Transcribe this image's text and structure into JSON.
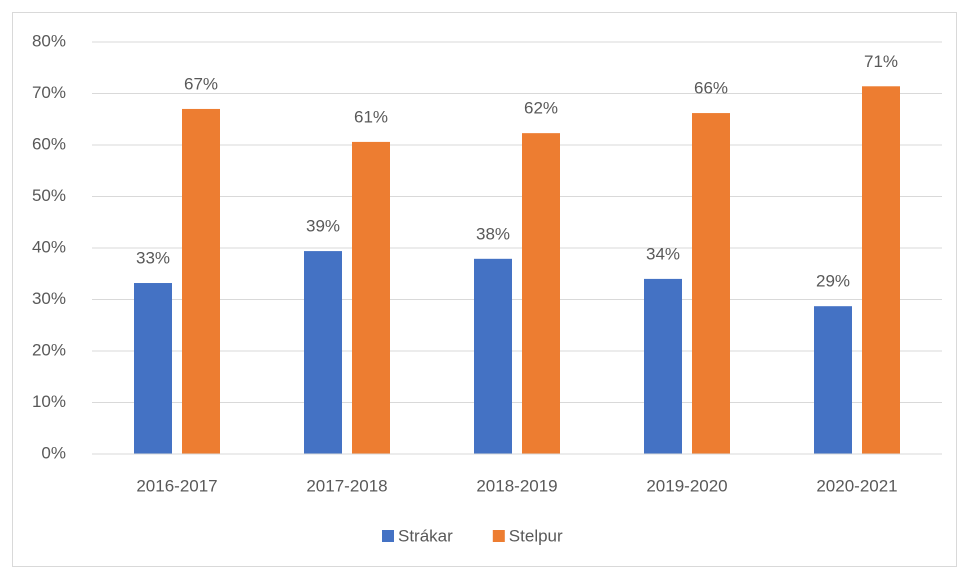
{
  "chart_data": {
    "type": "bar",
    "categories": [
      "2016-2017",
      "2017-2018",
      "2018-2019",
      "2019-2020",
      "2020-2021"
    ],
    "series": [
      {
        "name": "Strákar",
        "color": "#4472c4",
        "values": [
          33.2,
          39.4,
          37.9,
          34.0,
          28.7
        ],
        "value_labels": [
          "33%",
          "39%",
          "38%",
          "34%",
          "29%"
        ]
      },
      {
        "name": "Stelpur",
        "color": "#ed7d31",
        "values": [
          67.0,
          60.6,
          62.3,
          66.2,
          71.4
        ],
        "value_labels": [
          "67%",
          "61%",
          "62%",
          "66%",
          "71%"
        ]
      }
    ],
    "ylim": [
      0,
      80
    ],
    "yticks": [
      {
        "value": 0,
        "label": "0%"
      },
      {
        "value": 10,
        "label": "10%"
      },
      {
        "value": 20,
        "label": "20%"
      },
      {
        "value": 30,
        "label": "30%"
      },
      {
        "value": 40,
        "label": "40%"
      },
      {
        "value": 50,
        "label": "50%"
      },
      {
        "value": 60,
        "label": "60%"
      },
      {
        "value": 70,
        "label": "70%"
      },
      {
        "value": 80,
        "label": "80%"
      }
    ],
    "grid": true,
    "legend": "bottom"
  }
}
